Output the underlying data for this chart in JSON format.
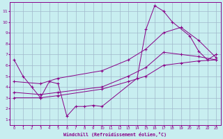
{
  "xlabel": "Windchill (Refroidissement éolien,°C)",
  "background_color": "#c8eef0",
  "grid_color": "#a0b8cc",
  "line_color": "#880088",
  "xlim": [
    -0.5,
    23.5
  ],
  "ylim": [
    0.5,
    11.8
  ],
  "xticks": [
    0,
    1,
    2,
    3,
    4,
    5,
    6,
    7,
    8,
    9,
    10,
    11,
    12,
    13,
    14,
    15,
    16,
    17,
    18,
    19,
    20,
    21,
    22,
    23
  ],
  "yticks": [
    1,
    2,
    3,
    4,
    5,
    6,
    7,
    8,
    9,
    10,
    11
  ],
  "line1_x": [
    0,
    1,
    2,
    3,
    4,
    5,
    6,
    7,
    8,
    9,
    10,
    14,
    15,
    16,
    17,
    18,
    20,
    21,
    22,
    23
  ],
  "line1_y": [
    6.5,
    5.0,
    4.0,
    3.0,
    4.5,
    4.3,
    1.3,
    2.2,
    2.2,
    2.3,
    2.2,
    4.8,
    9.3,
    11.5,
    11.0,
    10.0,
    8.7,
    7.3,
    6.5,
    7.0
  ],
  "line2_x": [
    0,
    3,
    5,
    10,
    13,
    15,
    17,
    19,
    21,
    23
  ],
  "line2_y": [
    4.5,
    4.3,
    4.8,
    5.5,
    6.5,
    7.5,
    9.0,
    9.5,
    8.3,
    6.7
  ],
  "line3_x": [
    0,
    3,
    5,
    10,
    13,
    15,
    17,
    19,
    21,
    23
  ],
  "line3_y": [
    3.5,
    3.3,
    3.5,
    4.0,
    5.0,
    5.8,
    7.2,
    7.0,
    6.8,
    6.5
  ],
  "line4_x": [
    0,
    3,
    5,
    10,
    13,
    15,
    17,
    19,
    21,
    23
  ],
  "line4_y": [
    3.0,
    3.0,
    3.2,
    3.8,
    4.5,
    5.0,
    6.0,
    6.2,
    6.4,
    6.5
  ]
}
